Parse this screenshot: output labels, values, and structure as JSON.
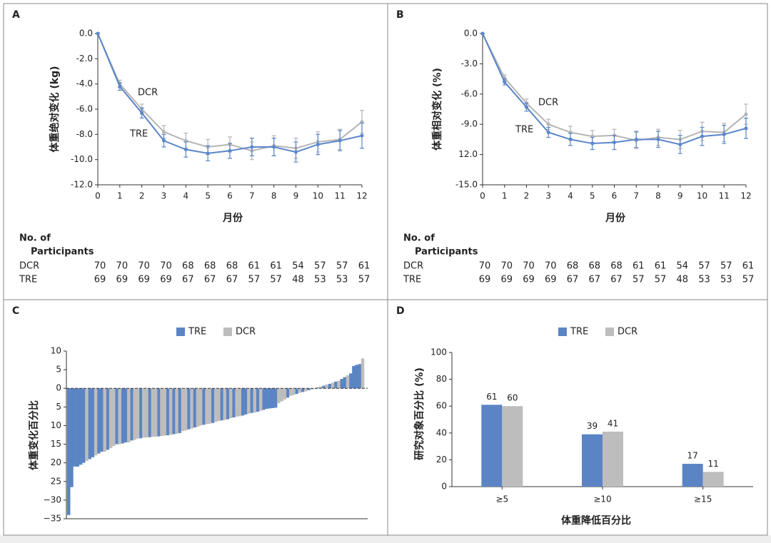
{
  "chart_data": [
    {
      "type": "line",
      "panel": "A",
      "ylabel": "体重绝对变化 (kg)",
      "xlabel": "月份",
      "x": [
        0,
        1,
        2,
        3,
        4,
        5,
        6,
        7,
        8,
        9,
        10,
        11,
        12
      ],
      "xlim": [
        0,
        12
      ],
      "xticks": [
        0,
        1,
        2,
        3,
        4,
        5,
        6,
        7,
        8,
        9,
        10,
        11,
        12
      ],
      "ylim": [
        -12,
        0
      ],
      "yticks": [
        {
          "value": 0,
          "label": "0.0"
        },
        {
          "value": -2,
          "label": "-2.0"
        },
        {
          "value": -4,
          "label": "-4.0"
        },
        {
          "value": -6,
          "label": "-6.0"
        },
        {
          "value": -8,
          "label": "-8.0"
        },
        {
          "value": -10,
          "label": "-10.0"
        },
        {
          "value": -12,
          "label": "-12.0"
        }
      ],
      "series": [
        {
          "name": "DCR",
          "color": "#b5b5b5",
          "values": [
            0,
            -4.0,
            -6.0,
            -7.8,
            -8.5,
            -9.0,
            -8.8,
            -9.3,
            -8.9,
            -9.1,
            -8.6,
            -8.4,
            -7.0
          ],
          "errors": [
            0,
            0.3,
            0.4,
            0.5,
            0.6,
            0.6,
            0.6,
            0.7,
            0.8,
            0.8,
            0.8,
            0.8,
            0.9
          ]
        },
        {
          "name": "TRE",
          "color": "#5b86c9",
          "values": [
            0,
            -4.2,
            -6.3,
            -8.5,
            -9.2,
            -9.5,
            -9.3,
            -9.0,
            -9.0,
            -9.4,
            -8.8,
            -8.5,
            -8.1
          ],
          "errors": [
            0,
            0.3,
            0.4,
            0.5,
            0.6,
            0.6,
            0.6,
            0.7,
            0.7,
            0.8,
            0.8,
            0.8,
            1.0
          ]
        }
      ],
      "annotations": [
        "DCR",
        "TRE"
      ],
      "table": {
        "title": [
          "No. of",
          "Participants"
        ],
        "rows": [
          {
            "name": "DCR",
            "values": [
              70,
              70,
              70,
              70,
              68,
              68,
              68,
              61,
              61,
              54,
              57,
              57,
              61
            ]
          },
          {
            "name": "TRE",
            "values": [
              69,
              69,
              69,
              69,
              67,
              67,
              67,
              57,
              57,
              48,
              53,
              53,
              57
            ]
          }
        ]
      }
    },
    {
      "type": "line",
      "panel": "B",
      "ylabel": "体重相对变化 (%)",
      "xlabel": "月份",
      "x": [
        0,
        1,
        2,
        3,
        4,
        5,
        6,
        7,
        8,
        9,
        10,
        11,
        12
      ],
      "xlim": [
        0,
        12
      ],
      "xticks": [
        0,
        1,
        2,
        3,
        4,
        5,
        6,
        7,
        8,
        9,
        10,
        11,
        12
      ],
      "ylim": [
        -15,
        0
      ],
      "yticks": [
        {
          "value": 0,
          "label": "0.0"
        },
        {
          "value": -3,
          "label": "-3.0"
        },
        {
          "value": -6,
          "label": "-6.0"
        },
        {
          "value": -9,
          "label": "-9.0"
        },
        {
          "value": -12,
          "label": "12.0"
        },
        {
          "value": -15,
          "label": "-15.0"
        }
      ],
      "series": [
        {
          "name": "DCR",
          "color": "#b5b5b5",
          "values": [
            0,
            -4.4,
            -6.9,
            -9.0,
            -9.8,
            -10.2,
            -10.1,
            -10.6,
            -10.3,
            -10.5,
            -9.7,
            -9.8,
            -8.0
          ],
          "errors": [
            0,
            0.3,
            0.4,
            0.5,
            0.6,
            0.6,
            0.6,
            0.8,
            0.8,
            0.9,
            0.9,
            0.9,
            1.0
          ]
        },
        {
          "name": "TRE",
          "color": "#5b86c9",
          "values": [
            0,
            -4.8,
            -7.3,
            -9.8,
            -10.5,
            -10.9,
            -10.8,
            -10.5,
            -10.5,
            -11.0,
            -10.2,
            -10.0,
            -9.4
          ],
          "errors": [
            0,
            0.3,
            0.4,
            0.5,
            0.6,
            0.6,
            0.7,
            0.8,
            0.8,
            0.9,
            0.9,
            0.9,
            1.0
          ]
        }
      ],
      "annotations": [
        "DCR",
        "TRE"
      ],
      "table": {
        "title": [
          "No. of",
          "Participants"
        ],
        "rows": [
          {
            "name": "DCR",
            "values": [
              70,
              70,
              70,
              70,
              68,
              68,
              68,
              61,
              61,
              54,
              57,
              57,
              61
            ]
          },
          {
            "name": "TRE",
            "values": [
              69,
              69,
              69,
              69,
              67,
              67,
              67,
              57,
              57,
              48,
              53,
              53,
              57
            ]
          }
        ]
      }
    },
    {
      "type": "bar",
      "panel": "C",
      "ylabel": "体重变化百分比",
      "ylim": [
        -35,
        10
      ],
      "yticks": [
        10,
        5,
        0,
        {
          "value": -5,
          "label": "5"
        },
        {
          "value": -10,
          "label": "10"
        },
        {
          "value": -15,
          "label": "15"
        },
        {
          "value": -20,
          "label": "20"
        },
        {
          "value": -25,
          "label": "25"
        },
        {
          "value": -30,
          "label": "−30"
        },
        {
          "value": -35,
          "label": "−35"
        }
      ],
      "series": [
        {
          "name": "TRE",
          "color": "#5b84c4",
          "values": [
            -34,
            -26.5,
            -21,
            -21,
            -20.5,
            -20,
            null,
            -19,
            -18.5,
            null,
            -17.5,
            -17,
            null,
            -16.5,
            null,
            null,
            -15,
            null,
            -14.8,
            -14.5,
            null,
            -14,
            null,
            null,
            -13.4,
            null,
            null,
            -13.1,
            null,
            null,
            -12.9,
            null,
            null,
            -12.6,
            null,
            -12.3,
            null,
            -12,
            null,
            null,
            -11,
            null,
            -10.5,
            null,
            null,
            -9.8,
            null,
            null,
            -9.3,
            null,
            null,
            -8.6,
            null,
            -8.3,
            null,
            -7.8,
            null,
            null,
            -7.3,
            -7,
            null,
            -6.6,
            null,
            -6.3,
            null,
            -5.8,
            -5.5,
            -5.4,
            -5.3,
            -5.2,
            null,
            null,
            null,
            -2.5,
            null,
            null,
            -1.5,
            null,
            -1,
            null,
            -0.5,
            null,
            null,
            0.2,
            null,
            0.7,
            null,
            1.2,
            null,
            1.8,
            null,
            2.5,
            3,
            null,
            4,
            6,
            6.3,
            6.5,
            null
          ]
        },
        {
          "name": "DCR",
          "color": "#bdbdbd",
          "values": [
            null,
            null,
            null,
            null,
            null,
            null,
            -19.5,
            null,
            null,
            -18,
            null,
            null,
            -17,
            null,
            -16,
            -15.5,
            null,
            -15,
            null,
            null,
            -14.5,
            null,
            -13.8,
            -13.5,
            null,
            -13.2,
            -13.2,
            null,
            -13,
            -13,
            null,
            -12.8,
            -12.7,
            null,
            -12.5,
            null,
            -12.2,
            null,
            -11.5,
            -11.3,
            null,
            -10.8,
            null,
            -10.3,
            -10,
            null,
            -9.6,
            -9.5,
            null,
            -9,
            -8.8,
            null,
            -8.5,
            null,
            -8,
            null,
            -7.6,
            -7.5,
            null,
            null,
            -6.8,
            null,
            -6.5,
            null,
            -6,
            null,
            null,
            null,
            null,
            null,
            -4,
            -3.5,
            -3,
            null,
            -2,
            -1.8,
            null,
            -1.2,
            null,
            -0.8,
            null,
            -0.3,
            -0.2,
            null,
            0.5,
            null,
            1,
            null,
            1.5,
            null,
            2,
            null,
            null,
            3.5,
            null,
            null,
            null,
            null,
            8
          ]
        }
      ]
    },
    {
      "type": "bar",
      "panel": "D",
      "ylabel": "研究对象百分比 (%)",
      "xlabel": "体重降低百分比",
      "categories": [
        "≥5",
        "≥10",
        "≥15"
      ],
      "ylim": [
        0,
        100
      ],
      "yticks": [
        0,
        20,
        40,
        60,
        80,
        100
      ],
      "series": [
        {
          "name": "TRE",
          "color": "#5b84c4",
          "values": [
            61,
            39,
            17
          ]
        },
        {
          "name": "DCR",
          "color": "#bdbdbd",
          "values": [
            60,
            41,
            11
          ]
        }
      ]
    }
  ]
}
